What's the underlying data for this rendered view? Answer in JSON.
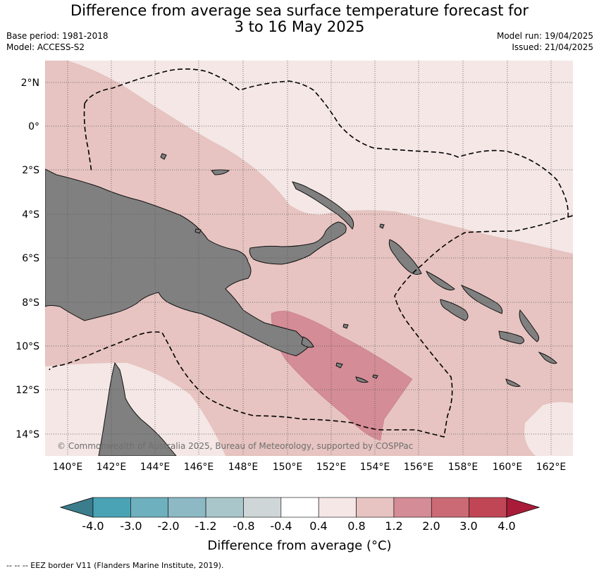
{
  "title": {
    "line1": "Difference from average sea surface temperature forecast for",
    "line2": "3 to 16 May 2025"
  },
  "meta": {
    "base_period": "Base period: 1981-2018",
    "model": "Model: ACCESS-S2",
    "model_run": "Model run: 19/04/2025",
    "issued": "Issued: 21/04/2025"
  },
  "map": {
    "copyright": "© Commonwealth of Australia 2025, Bureau of Meteorology, supported by COSPPac",
    "lat_labels": [
      "2°N",
      "0°",
      "2°S",
      "4°S",
      "6°S",
      "8°S",
      "10°S",
      "12°S",
      "14°S"
    ],
    "lon_labels": [
      "140°E",
      "142°E",
      "144°E",
      "146°E",
      "148°E",
      "150°E",
      "152°E",
      "154°E",
      "156°E",
      "158°E",
      "160°E",
      "162°E"
    ],
    "colors": {
      "land": "#808080",
      "band_0_4_0_8": "#f4e7e6",
      "band_0_8_1_2": "#e7c4c1",
      "band_1_2_2_0": "#d48c96"
    }
  },
  "colorbar": {
    "ticks": [
      "-4.0",
      "-3.0",
      "-2.0",
      "-1.2",
      "-0.8",
      "-0.4",
      "0.4",
      "0.8",
      "1.2",
      "2.0",
      "3.0",
      "4.0"
    ],
    "colors": [
      "#3b7d8c",
      "#4aa3b5",
      "#6eb0be",
      "#8cb9c4",
      "#a9c7cb",
      "#cfd6d8",
      "#ffffff",
      "#f4e7e6",
      "#e7c4c1",
      "#d48c96",
      "#cb6a75",
      "#c04655",
      "#a91c39"
    ],
    "title": "Difference from average (°C)"
  },
  "footer": "--  --  -- EEZ border V11 (Flanders Marine Institute, 2019)."
}
